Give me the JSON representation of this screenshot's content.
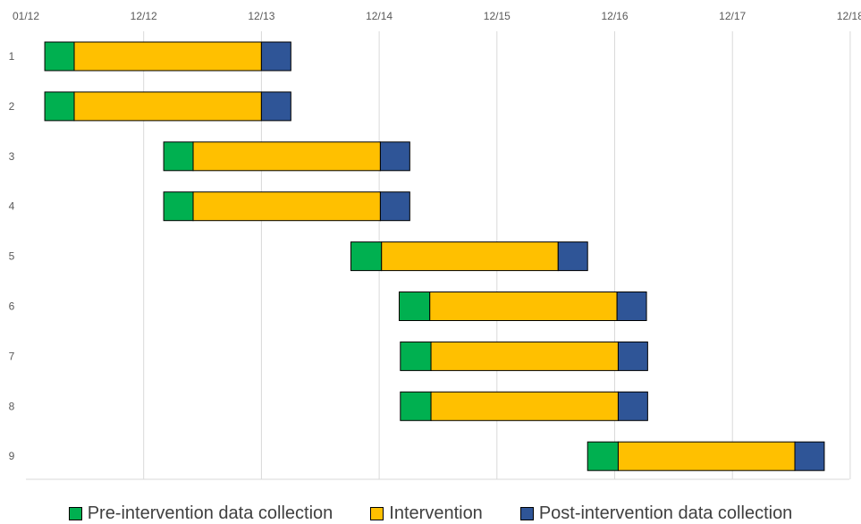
{
  "chart_data": {
    "type": "bar",
    "orientation": "horizontal-stacked",
    "title": "",
    "xlabel": "",
    "ylabel": "",
    "x_ticks": [
      "01/12",
      "12/12",
      "12/13",
      "12/14",
      "12/15",
      "12/16",
      "12/17",
      "12/18"
    ],
    "xlim": [
      0,
      7
    ],
    "categories": [
      "1",
      "2",
      "3",
      "4",
      "5",
      "6",
      "7",
      "8",
      "9"
    ],
    "grid": true,
    "legend_position": "bottom",
    "series": [
      {
        "name": "Pre-intervention data collection",
        "color": "#00b050"
      },
      {
        "name": "Intervention",
        "color": "#ffc000"
      },
      {
        "name": "Post-intervention data collection",
        "color": "#2f5597"
      }
    ],
    "rows": [
      {
        "label": "1",
        "start": 0.16,
        "segments": [
          0.25,
          1.59,
          0.25
        ]
      },
      {
        "label": "2",
        "start": 0.16,
        "segments": [
          0.25,
          1.59,
          0.25
        ]
      },
      {
        "label": "3",
        "start": 1.17,
        "segments": [
          0.25,
          1.59,
          0.25
        ]
      },
      {
        "label": "4",
        "start": 1.17,
        "segments": [
          0.25,
          1.59,
          0.25
        ]
      },
      {
        "label": "5",
        "start": 2.76,
        "segments": [
          0.26,
          1.5,
          0.25
        ]
      },
      {
        "label": "6",
        "start": 3.17,
        "segments": [
          0.26,
          1.59,
          0.25
        ]
      },
      {
        "label": "7",
        "start": 3.18,
        "segments": [
          0.26,
          1.59,
          0.25
        ]
      },
      {
        "label": "8",
        "start": 3.18,
        "segments": [
          0.26,
          1.59,
          0.25
        ]
      },
      {
        "label": "9",
        "start": 4.77,
        "segments": [
          0.26,
          1.5,
          0.25
        ]
      }
    ]
  }
}
